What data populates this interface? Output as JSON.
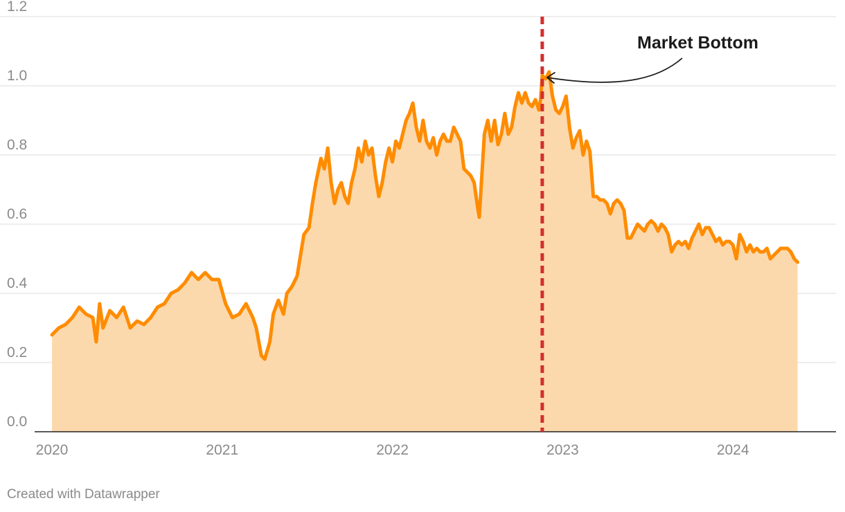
{
  "chart_data": {
    "type": "area",
    "title": "",
    "xlabel": "",
    "ylabel": "",
    "xlim": [
      2020.0,
      2024.52
    ],
    "ylim": [
      0,
      1.2
    ],
    "y_ticks": [
      "0.0",
      "0.2",
      "0.4",
      "0.6",
      "0.8",
      "1.0",
      "1.2"
    ],
    "x_ticks": [
      "2020",
      "2021",
      "2022",
      "2023",
      "2024"
    ],
    "grid": "horizontal",
    "legend": "none",
    "series": [
      {
        "color": "#ff8c00",
        "fill_color": "#fcd9ad",
        "points": [
          [
            2020.0,
            0.28
          ],
          [
            2020.04,
            0.3
          ],
          [
            2020.08,
            0.31
          ],
          [
            2020.12,
            0.33
          ],
          [
            2020.16,
            0.36
          ],
          [
            2020.2,
            0.34
          ],
          [
            2020.24,
            0.33
          ],
          [
            2020.26,
            0.26
          ],
          [
            2020.28,
            0.37
          ],
          [
            2020.3,
            0.3
          ],
          [
            2020.34,
            0.35
          ],
          [
            2020.38,
            0.33
          ],
          [
            2020.42,
            0.36
          ],
          [
            2020.46,
            0.3
          ],
          [
            2020.5,
            0.32
          ],
          [
            2020.54,
            0.31
          ],
          [
            2020.58,
            0.33
          ],
          [
            2020.62,
            0.36
          ],
          [
            2020.66,
            0.37
          ],
          [
            2020.7,
            0.4
          ],
          [
            2020.74,
            0.41
          ],
          [
            2020.78,
            0.43
          ],
          [
            2020.82,
            0.46
          ],
          [
            2020.86,
            0.44
          ],
          [
            2020.9,
            0.46
          ],
          [
            2020.94,
            0.44
          ],
          [
            2020.98,
            0.44
          ],
          [
            2021.02,
            0.37
          ],
          [
            2021.06,
            0.33
          ],
          [
            2021.1,
            0.34
          ],
          [
            2021.14,
            0.37
          ],
          [
            2021.18,
            0.33
          ],
          [
            2021.2,
            0.3
          ],
          [
            2021.23,
            0.22
          ],
          [
            2021.25,
            0.21
          ],
          [
            2021.28,
            0.26
          ],
          [
            2021.3,
            0.34
          ],
          [
            2021.33,
            0.38
          ],
          [
            2021.36,
            0.34
          ],
          [
            2021.38,
            0.4
          ],
          [
            2021.41,
            0.42
          ],
          [
            2021.44,
            0.45
          ],
          [
            2021.46,
            0.51
          ],
          [
            2021.48,
            0.57
          ],
          [
            2021.51,
            0.59
          ],
          [
            2021.53,
            0.66
          ],
          [
            2021.55,
            0.72
          ],
          [
            2021.58,
            0.79
          ],
          [
            2021.6,
            0.76
          ],
          [
            2021.62,
            0.82
          ],
          [
            2021.64,
            0.72
          ],
          [
            2021.66,
            0.66
          ],
          [
            2021.68,
            0.7
          ],
          [
            2021.7,
            0.72
          ],
          [
            2021.72,
            0.68
          ],
          [
            2021.74,
            0.66
          ],
          [
            2021.76,
            0.72
          ],
          [
            2021.78,
            0.76
          ],
          [
            2021.8,
            0.82
          ],
          [
            2021.82,
            0.78
          ],
          [
            2021.84,
            0.84
          ],
          [
            2021.86,
            0.8
          ],
          [
            2021.88,
            0.82
          ],
          [
            2021.9,
            0.74
          ],
          [
            2021.92,
            0.68
          ],
          [
            2021.94,
            0.72
          ],
          [
            2021.96,
            0.78
          ],
          [
            2021.98,
            0.82
          ],
          [
            2022.0,
            0.78
          ],
          [
            2022.02,
            0.84
          ],
          [
            2022.04,
            0.82
          ],
          [
            2022.06,
            0.86
          ],
          [
            2022.08,
            0.9
          ],
          [
            2022.1,
            0.92
          ],
          [
            2022.12,
            0.95
          ],
          [
            2022.14,
            0.88
          ],
          [
            2022.16,
            0.84
          ],
          [
            2022.18,
            0.9
          ],
          [
            2022.2,
            0.84
          ],
          [
            2022.22,
            0.82
          ],
          [
            2022.24,
            0.85
          ],
          [
            2022.26,
            0.8
          ],
          [
            2022.28,
            0.84
          ],
          [
            2022.3,
            0.86
          ],
          [
            2022.32,
            0.84
          ],
          [
            2022.34,
            0.84
          ],
          [
            2022.36,
            0.88
          ],
          [
            2022.38,
            0.86
          ],
          [
            2022.4,
            0.84
          ],
          [
            2022.42,
            0.76
          ],
          [
            2022.44,
            0.75
          ],
          [
            2022.46,
            0.74
          ],
          [
            2022.48,
            0.72
          ],
          [
            2022.5,
            0.65
          ],
          [
            2022.51,
            0.62
          ],
          [
            2022.52,
            0.7
          ],
          [
            2022.54,
            0.86
          ],
          [
            2022.56,
            0.9
          ],
          [
            2022.58,
            0.84
          ],
          [
            2022.6,
            0.9
          ],
          [
            2022.62,
            0.83
          ],
          [
            2022.64,
            0.86
          ],
          [
            2022.66,
            0.92
          ],
          [
            2022.68,
            0.86
          ],
          [
            2022.7,
            0.88
          ],
          [
            2022.72,
            0.94
          ],
          [
            2022.74,
            0.98
          ],
          [
            2022.76,
            0.95
          ],
          [
            2022.78,
            0.98
          ],
          [
            2022.8,
            0.95
          ],
          [
            2022.82,
            0.94
          ],
          [
            2022.84,
            0.96
          ],
          [
            2022.86,
            0.93
          ],
          [
            2022.87,
            0.96
          ],
          [
            2022.88,
            1.03
          ],
          [
            2022.9,
            1.02
          ],
          [
            2022.92,
            1.04
          ],
          [
            2022.94,
            0.97
          ],
          [
            2022.96,
            0.93
          ],
          [
            2022.98,
            0.92
          ],
          [
            2023.0,
            0.94
          ],
          [
            2023.02,
            0.97
          ],
          [
            2023.04,
            0.88
          ],
          [
            2023.06,
            0.82
          ],
          [
            2023.08,
            0.85
          ],
          [
            2023.1,
            0.87
          ],
          [
            2023.12,
            0.8
          ],
          [
            2023.14,
            0.84
          ],
          [
            2023.16,
            0.81
          ],
          [
            2023.18,
            0.68
          ],
          [
            2023.2,
            0.68
          ],
          [
            2023.22,
            0.67
          ],
          [
            2023.24,
            0.67
          ],
          [
            2023.26,
            0.66
          ],
          [
            2023.28,
            0.63
          ],
          [
            2023.3,
            0.66
          ],
          [
            2023.32,
            0.67
          ],
          [
            2023.34,
            0.66
          ],
          [
            2023.36,
            0.64
          ],
          [
            2023.38,
            0.56
          ],
          [
            2023.4,
            0.56
          ],
          [
            2023.42,
            0.58
          ],
          [
            2023.44,
            0.6
          ],
          [
            2023.46,
            0.59
          ],
          [
            2023.48,
            0.58
          ],
          [
            2023.5,
            0.6
          ],
          [
            2023.52,
            0.61
          ],
          [
            2023.54,
            0.6
          ],
          [
            2023.56,
            0.58
          ],
          [
            2023.58,
            0.6
          ],
          [
            2023.6,
            0.59
          ],
          [
            2023.62,
            0.57
          ],
          [
            2023.64,
            0.52
          ],
          [
            2023.66,
            0.54
          ],
          [
            2023.68,
            0.55
          ],
          [
            2023.7,
            0.54
          ],
          [
            2023.72,
            0.55
          ],
          [
            2023.74,
            0.53
          ],
          [
            2023.76,
            0.56
          ],
          [
            2023.78,
            0.58
          ],
          [
            2023.8,
            0.6
          ],
          [
            2023.82,
            0.57
          ],
          [
            2023.84,
            0.59
          ],
          [
            2023.86,
            0.59
          ],
          [
            2023.88,
            0.57
          ],
          [
            2023.9,
            0.55
          ],
          [
            2023.92,
            0.56
          ],
          [
            2023.94,
            0.54
          ],
          [
            2023.96,
            0.55
          ],
          [
            2023.98,
            0.55
          ],
          [
            2024.0,
            0.54
          ],
          [
            2024.02,
            0.5
          ],
          [
            2024.04,
            0.57
          ],
          [
            2024.06,
            0.55
          ],
          [
            2024.08,
            0.52
          ],
          [
            2024.1,
            0.54
          ],
          [
            2024.12,
            0.52
          ],
          [
            2024.14,
            0.53
          ],
          [
            2024.16,
            0.52
          ],
          [
            2024.18,
            0.52
          ],
          [
            2024.2,
            0.53
          ],
          [
            2024.22,
            0.5
          ],
          [
            2024.24,
            0.51
          ],
          [
            2024.26,
            0.52
          ],
          [
            2024.28,
            0.53
          ],
          [
            2024.3,
            0.53
          ],
          [
            2024.32,
            0.53
          ],
          [
            2024.34,
            0.52
          ],
          [
            2024.36,
            0.5
          ],
          [
            2024.38,
            0.49
          ]
        ]
      }
    ],
    "annotations": [
      {
        "text": "Market Bottom",
        "x": 2022.88,
        "y": 1.02,
        "line_color": "#d32f2f"
      }
    ]
  },
  "footer": {
    "credit": "Created with Datawrapper"
  }
}
